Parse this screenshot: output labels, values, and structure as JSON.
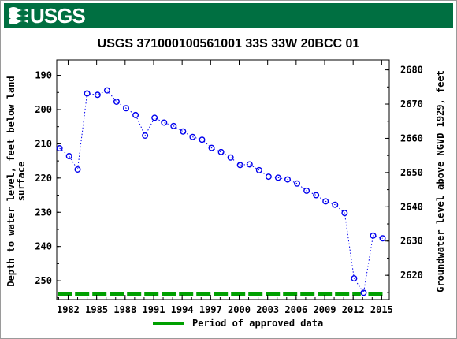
{
  "header": {
    "logo_text": "USGS",
    "logo_icon": "usgs-wave-icon"
  },
  "colors": {
    "banner": "#006f41",
    "series": "#0000ee",
    "approved": "#00a000",
    "axis": "#000000"
  },
  "chart_data": {
    "type": "scatter",
    "title": "USGS 371000100561001 33S 33W 20BCC 01",
    "ylabel_left_line1": "Depth to water level, feet below land",
    "ylabel_left_line2": "surface",
    "ylabel_right": "Groundwater level above NGVD 1929, feet",
    "x_ticks": [
      "1982",
      "1985",
      "1988",
      "1991",
      "1994",
      "1997",
      "2000",
      "2003",
      "2006",
      "2009",
      "2012",
      "2015"
    ],
    "y_left_ticks": [
      "190",
      "200",
      "210",
      "220",
      "230",
      "240",
      "250"
    ],
    "y_right_ticks": [
      "2680",
      "2670",
      "2660",
      "2650",
      "2640",
      "2630",
      "2620"
    ],
    "y_left_range_inverted": [
      185.5,
      255.5
    ],
    "y_right_range": [
      2612.9,
      2682.9
    ],
    "x_range": [
      1980.8,
      2015.8
    ],
    "grid": false,
    "legend_position": "bottom",
    "legend": {
      "approved_label": "Period of approved data"
    },
    "approved_periods": [
      [
        1980.9,
        2012.8
      ],
      [
        2013.6,
        2015.2
      ]
    ],
    "series": [
      {
        "marker": "circle-open",
        "line": "dotted",
        "points": [
          {
            "x": 1981.1,
            "y": 211.3
          },
          {
            "x": 1982.1,
            "y": 213.6
          },
          {
            "x": 1983.0,
            "y": 217.5
          },
          {
            "x": 1984.0,
            "y": 195.3
          },
          {
            "x": 1985.1,
            "y": 195.7
          },
          {
            "x": 1986.1,
            "y": 194.4
          },
          {
            "x": 1987.1,
            "y": 197.7
          },
          {
            "x": 1988.1,
            "y": 199.6
          },
          {
            "x": 1989.1,
            "y": 201.6
          },
          {
            "x": 1990.1,
            "y": 207.6
          },
          {
            "x": 1991.1,
            "y": 202.4
          },
          {
            "x": 1992.1,
            "y": 203.8
          },
          {
            "x": 1993.1,
            "y": 204.8
          },
          {
            "x": 1994.1,
            "y": 206.4
          },
          {
            "x": 1995.1,
            "y": 208.0
          },
          {
            "x": 1996.1,
            "y": 208.8
          },
          {
            "x": 1997.1,
            "y": 211.2
          },
          {
            "x": 1998.1,
            "y": 212.4
          },
          {
            "x": 1999.1,
            "y": 214.0
          },
          {
            "x": 2000.1,
            "y": 216.2
          },
          {
            "x": 2001.1,
            "y": 216.0
          },
          {
            "x": 2002.1,
            "y": 217.7
          },
          {
            "x": 2003.1,
            "y": 219.6
          },
          {
            "x": 2004.1,
            "y": 219.9
          },
          {
            "x": 2005.1,
            "y": 220.4
          },
          {
            "x": 2006.1,
            "y": 221.6
          },
          {
            "x": 2007.1,
            "y": 223.7
          },
          {
            "x": 2008.1,
            "y": 225.0
          },
          {
            "x": 2009.1,
            "y": 226.8
          },
          {
            "x": 2010.1,
            "y": 227.8
          },
          {
            "x": 2011.1,
            "y": 230.2
          },
          {
            "x": 2012.1,
            "y": 249.3
          },
          {
            "x": 2013.1,
            "y": 253.5
          },
          {
            "x": 2014.1,
            "y": 236.8
          },
          {
            "x": 2015.1,
            "y": 237.6
          }
        ]
      }
    ]
  }
}
